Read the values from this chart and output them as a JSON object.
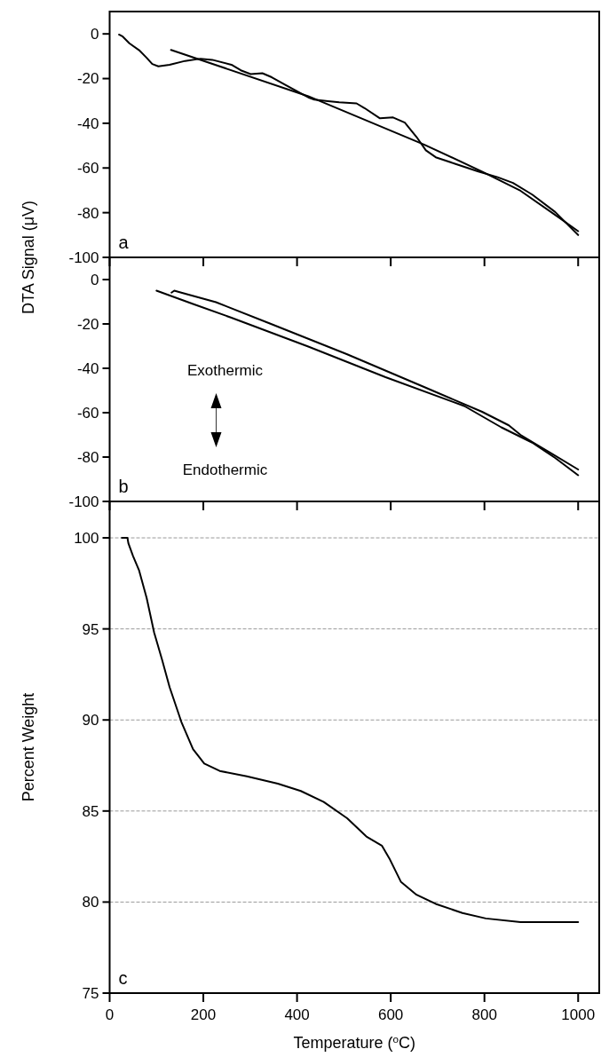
{
  "chart_data": [
    {
      "type": "line",
      "ylabel": "DTA Signal (μV)",
      "xlim": [
        0,
        1045
      ],
      "xticks": [
        0,
        200,
        400,
        600,
        800,
        1000
      ],
      "ylim": [
        -100,
        10
      ],
      "yticks": [
        -100,
        -80,
        -60,
        -40,
        -20,
        0
      ],
      "tick_labels": "y",
      "grid": false,
      "annotations": [
        "a"
      ],
      "series": [
        {
          "color": "#000000",
          "x": [
            20,
            28,
            42,
            63,
            79,
            91,
            104,
            128,
            161,
            194,
            219,
            260,
            280,
            301,
            326,
            346,
            375,
            408,
            424,
            437,
            466,
            490,
            527,
            544,
            577,
            605,
            630,
            655,
            675,
            696,
            737,
            787,
            828,
            861,
            902,
            951,
            1000
          ],
          "values": [
            -0.3,
            -1.2,
            -4.2,
            -7.3,
            -10.7,
            -13.5,
            -14.5,
            -13.8,
            -12.1,
            -11.1,
            -11.6,
            -13.8,
            -16.3,
            -18,
            -17.6,
            -19.4,
            -22.8,
            -26.6,
            -28.4,
            -29.4,
            -30.1,
            -30.6,
            -31.1,
            -33.2,
            -37.8,
            -37.4,
            -39.7,
            -46.1,
            -52.1,
            -55.2,
            -58.1,
            -61.6,
            -64.1,
            -66.7,
            -71.9,
            -79.7,
            -90
          ]
        },
        {
          "color": "#000000",
          "x": [
            131,
            424,
            671,
            795,
            877,
            959,
            1000
          ],
          "values": [
            -7.2,
            -27.9,
            -49.5,
            -61.6,
            -70.2,
            -82.2,
            -88.3
          ]
        }
      ]
    },
    {
      "type": "line",
      "xlim": [
        0,
        1045
      ],
      "xticks": [
        0,
        200,
        400,
        600,
        800,
        1000
      ],
      "ylim": [
        -100,
        10
      ],
      "yticks": [
        -100,
        -80,
        -60,
        -40,
        -20,
        0
      ],
      "tick_labels": "y",
      "grid": false,
      "annotations": [
        "b",
        "Exothermic",
        "Endothermic"
      ],
      "series": [
        {
          "color": "#000000",
          "x": [
            100,
            178,
            260,
            424,
            589,
            757,
            836,
            902,
            951,
            1000
          ],
          "values": [
            -5,
            -11,
            -17.2,
            -30.2,
            -44,
            -57,
            -66.6,
            -73.5,
            -80.4,
            -88.2
          ]
        },
        {
          "color": "#000000",
          "x": [
            132,
            138,
            153,
            227,
            342,
            506,
            671,
            795,
            852,
            877,
            918,
            1000
          ],
          "values": [
            -5.9,
            -5,
            -5.9,
            -10.2,
            -19.8,
            -33.6,
            -48.4,
            -59.6,
            -65.7,
            -70,
            -75.2,
            -85.6
          ]
        }
      ]
    },
    {
      "type": "line",
      "xlabel": "Temperature ($^{o}$C)",
      "ylabel": "Percent Weight",
      "xlim": [
        0,
        1045
      ],
      "xticks": [
        0,
        200,
        400,
        600,
        800,
        1000
      ],
      "ylim": [
        75,
        102
      ],
      "yticks": [
        75,
        80,
        85,
        90,
        95,
        100
      ],
      "grid": "y",
      "annotations": [
        "c"
      ],
      "series": [
        {
          "color": "#000000",
          "x": [
            26,
            38,
            40,
            50,
            63,
            79,
            95,
            112,
            128,
            153,
            178,
            202,
            235,
            293,
            359,
            408,
            457,
            507,
            548,
            581,
            597,
            622,
            655,
            696,
            753,
            803,
            877,
            1000
          ],
          "values": [
            100,
            100,
            99.7,
            99,
            98.2,
            96.7,
            94.8,
            93.3,
            91.8,
            89.9,
            88.4,
            87.6,
            87.2,
            86.9,
            86.5,
            86.1,
            85.5,
            84.6,
            83.6,
            83.1,
            82.4,
            81.1,
            80.4,
            79.9,
            79.4,
            79.1,
            78.9,
            78.9
          ]
        }
      ]
    }
  ]
}
